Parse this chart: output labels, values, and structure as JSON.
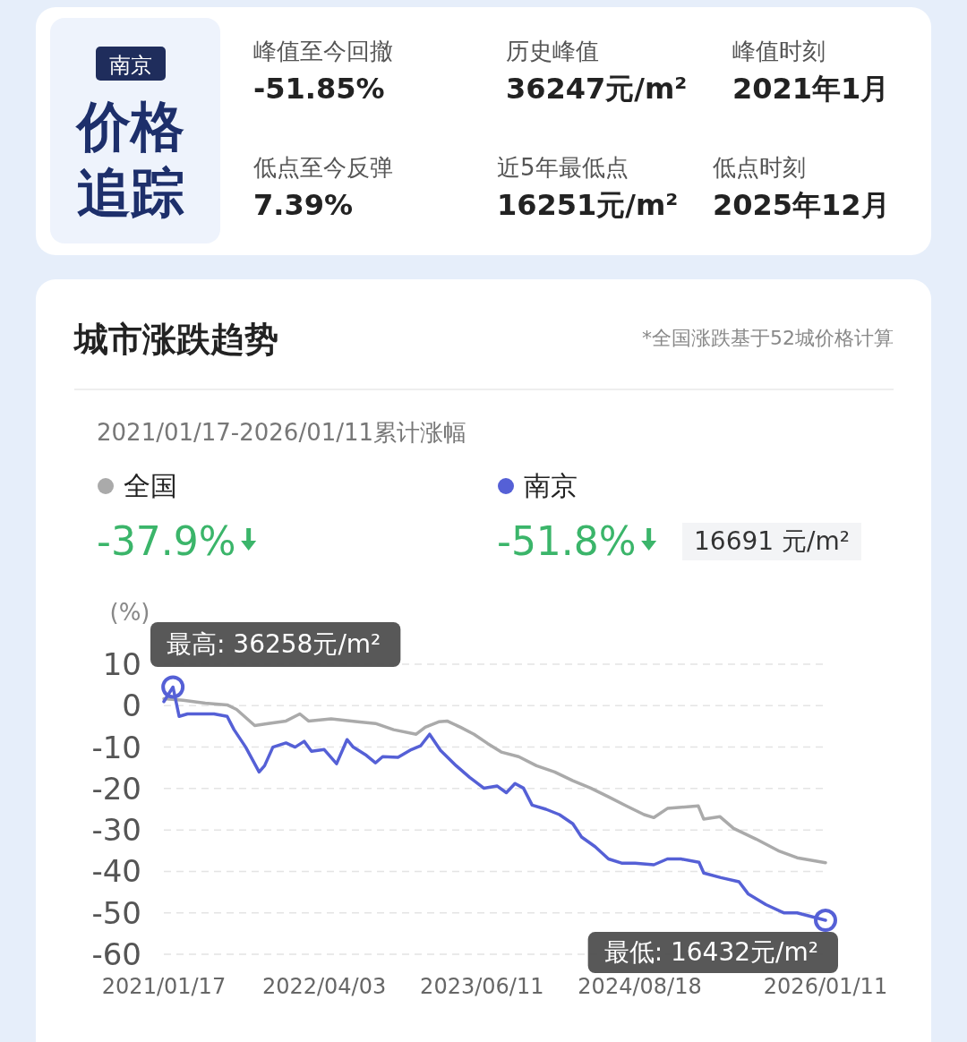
{
  "chart_data": [
    {
      "type": "other",
      "subtitle": "南京",
      "title": "价格追踪",
      "annotations": [
        "峰值至今回撤",
        "-51.85%",
        "历史峰值",
        "36247元/m²",
        "峰值时刻",
        "2021年1月",
        "低点至今反弹",
        "7.39%",
        "近5年最低点",
        "16251元/m²",
        "低点时刻",
        "2025年12月"
      ]
    },
    {
      "type": "line",
      "title": "城市涨跌趋势",
      "subtitle": "2021/01/17-2026/01/11累计涨幅",
      "ylabel": "(%)",
      "legend": "top left",
      "grid": "y",
      "marker": "none",
      "line_style": "solid",
      "xlim": [
        "2021-01-17",
        "2026-01-11"
      ],
      "xticks": [
        {
          "value": "2021-01-17",
          "label": "2021/01/17"
        },
        {
          "value": "2022-04-03",
          "label": "2022/04/03"
        },
        {
          "value": "2023-06-11",
          "label": "2023/06/11"
        },
        {
          "value": "2024-08-18",
          "label": "2024/08/18"
        },
        {
          "value": "2026-01-11",
          "label": "2026/01/11"
        }
      ],
      "ylim": [
        -60,
        10
      ],
      "yticks": [
        10,
        0,
        -10,
        -20,
        -30,
        -40,
        -50,
        -60
      ],
      "series": [
        {
          "name": "全国",
          "color": "#aaaaaa",
          "x": [
            "2021-01-17",
            "2021-03-11",
            "2021-05-11",
            "2021-07-10",
            "2021-08-05",
            "2021-09-24",
            "2021-10-31",
            "2021-12-19",
            "2022-01-26",
            "2022-02-19",
            "2022-04-22",
            "2022-07-04",
            "2022-08-22",
            "2022-10-11",
            "2022-12-12",
            "2023-01-06",
            "2023-02-12",
            "2023-03-07",
            "2023-04-13",
            "2023-05-20",
            "2023-06-26",
            "2023-08-03",
            "2023-09-20",
            "2023-11-08",
            "2023-12-28",
            "2024-02-16",
            "2024-04-05",
            "2024-05-24",
            "2024-07-12",
            "2024-08-30",
            "2024-09-26",
            "2024-11-02",
            "2025-01-26",
            "2025-02-10",
            "2025-03-27",
            "2025-05-03",
            "2025-07-04",
            "2025-09-03",
            "2025-10-25",
            "2026-01-11"
          ],
          "values": [
            1.7,
            1.3,
            0.6,
            0.2,
            -0.9,
            -4.8,
            -4.3,
            -3.7,
            -2,
            -3.7,
            -3.2,
            -3.9,
            -4.3,
            -5.8,
            -6.9,
            -5.2,
            -3.9,
            -3.7,
            -5.2,
            -6.9,
            -9.1,
            -11.2,
            -12.3,
            -14.5,
            -16,
            -18.1,
            -19.9,
            -22,
            -24.2,
            -26.3,
            -27,
            -24.8,
            -24.2,
            -27.4,
            -26.8,
            -29.6,
            -32.2,
            -35,
            -36.7,
            -37.9
          ]
        },
        {
          "name": "南京",
          "color": "#5560d6",
          "x": [
            "2021-01-17",
            "2021-02-11",
            "2021-02-28",
            "2021-03-23",
            "2021-06-04",
            "2021-07-10",
            "2021-07-29",
            "2021-08-30",
            "2021-10-06",
            "2021-10-21",
            "2021-11-13",
            "2021-12-19",
            "2022-01-13",
            "2022-02-07",
            "2022-02-27",
            "2022-04-03",
            "2022-05-07",
            "2022-06-05",
            "2022-06-22",
            "2022-07-28",
            "2022-08-22",
            "2022-09-11",
            "2022-10-23",
            "2022-11-29",
            "2022-12-24",
            "2023-01-18",
            "2023-02-17",
            "2023-04-01",
            "2023-05-08",
            "2023-06-16",
            "2023-07-23",
            "2023-08-17",
            "2023-09-10",
            "2023-10-03",
            "2023-10-27",
            "2023-12-04",
            "2024-01-10",
            "2024-02-16",
            "2024-03-11",
            "2024-04-17",
            "2024-05-24",
            "2024-06-29",
            "2024-08-05",
            "2024-09-26",
            "2024-11-02",
            "2024-12-09",
            "2025-01-28",
            "2025-02-10",
            "2025-03-29",
            "2025-05-18",
            "2025-06-12",
            "2025-07-31",
            "2025-09-18",
            "2025-10-25",
            "2026-01-11"
          ],
          "values": [
            1,
            4.5,
            -2.6,
            -2,
            -2,
            -2.6,
            -5.8,
            -10,
            -16,
            -14.5,
            -10,
            -9,
            -10,
            -8.6,
            -11,
            -10.6,
            -14,
            -8.2,
            -10,
            -12,
            -13.8,
            -12.3,
            -12.5,
            -10.6,
            -9.7,
            -6.9,
            -10.8,
            -14.5,
            -17.3,
            -19.9,
            -19.4,
            -21,
            -18.8,
            -19.9,
            -24,
            -25,
            -26.3,
            -28.5,
            -31.7,
            -34,
            -37,
            -38,
            -38,
            -38.4,
            -37,
            -37,
            -37.8,
            -40.4,
            -41.5,
            -42.5,
            -45.4,
            -48,
            -50,
            -50,
            -51.8
          ]
        }
      ],
      "annotations": [
        "*全国涨跌基于52城价格计算",
        "-37.9%",
        "-51.8%",
        "16691 元/m²",
        {
          "text": "最高: 36258元/m²",
          "x": "2021-02-11",
          "y": 4.5
        },
        {
          "text": "最低: 16432元/m²",
          "x": "2026-01-11",
          "y": -51.8
        }
      ]
    }
  ]
}
